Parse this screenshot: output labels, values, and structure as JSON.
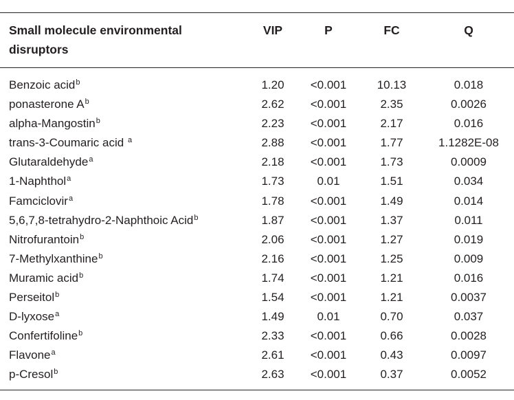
{
  "table": {
    "headers": {
      "name": "Small molecule environmental disruptors",
      "vip": "VIP",
      "p": "P",
      "fc": "FC",
      "q": "Q"
    },
    "rows": [
      {
        "name": "Benzoic acid",
        "sup": "b",
        "vip": "1.20",
        "p": "<0.001",
        "fc": "10.13",
        "q": "0.018"
      },
      {
        "name": "ponasterone A",
        "sup": "b",
        "vip": "2.62",
        "p": "<0.001",
        "fc": "2.35",
        "q": "0.0026"
      },
      {
        "name": "alpha-Mangostin",
        "sup": "b",
        "vip": "2.23",
        "p": "<0.001",
        "fc": "2.17",
        "q": "0.016"
      },
      {
        "name": "trans-3-Coumaric acid ",
        "sup": "a",
        "vip": "2.88",
        "p": "<0.001",
        "fc": "1.77",
        "q": "1.1282E-08"
      },
      {
        "name": "Glutaraldehyde",
        "sup": "a",
        "vip": "2.18",
        "p": "<0.001",
        "fc": "1.73",
        "q": "0.0009"
      },
      {
        "name": "1-Naphthol",
        "sup": "a",
        "vip": "1.73",
        "p": "0.01",
        "fc": "1.51",
        "q": "0.034"
      },
      {
        "name": "Famciclovir",
        "sup": "a",
        "vip": "1.78",
        "p": "<0.001",
        "fc": "1.49",
        "q": "0.014"
      },
      {
        "name": "5,6,7,8-tetrahydro-2-Naphthoic Acid",
        "sup": "b",
        "vip": "1.87",
        "p": "<0.001",
        "fc": "1.37",
        "q": "0.011"
      },
      {
        "name": "Nitrofurantoin",
        "sup": "b",
        "vip": "2.06",
        "p": "<0.001",
        "fc": "1.27",
        "q": "0.019"
      },
      {
        "name": "7-Methylxanthine",
        "sup": "b",
        "vip": "2.16",
        "p": "<0.001",
        "fc": "1.25",
        "q": "0.009"
      },
      {
        "name": "Muramic acid",
        "sup": "b",
        "vip": "1.74",
        "p": "<0.001",
        "fc": "1.21",
        "q": "0.016"
      },
      {
        "name": "Perseitol",
        "sup": "b",
        "vip": "1.54",
        "p": "<0.001",
        "fc": "1.21",
        "q": "0.0037"
      },
      {
        "name": "D-lyxose",
        "sup": "a",
        "vip": "1.49",
        "p": "0.01",
        "fc": "0.70",
        "q": "0.037"
      },
      {
        "name": "Confertifoline",
        "sup": "b",
        "vip": "2.33",
        "p": "<0.001",
        "fc": "0.66",
        "q": "0.0028"
      },
      {
        "name": "Flavone",
        "sup": "a",
        "vip": "2.61",
        "p": "<0.001",
        "fc": "0.43",
        "q": "0.0097"
      },
      {
        "name": "p-Cresol",
        "sup": "b",
        "vip": "2.63",
        "p": "<0.001",
        "fc": "0.37",
        "q": "0.0052"
      }
    ]
  }
}
